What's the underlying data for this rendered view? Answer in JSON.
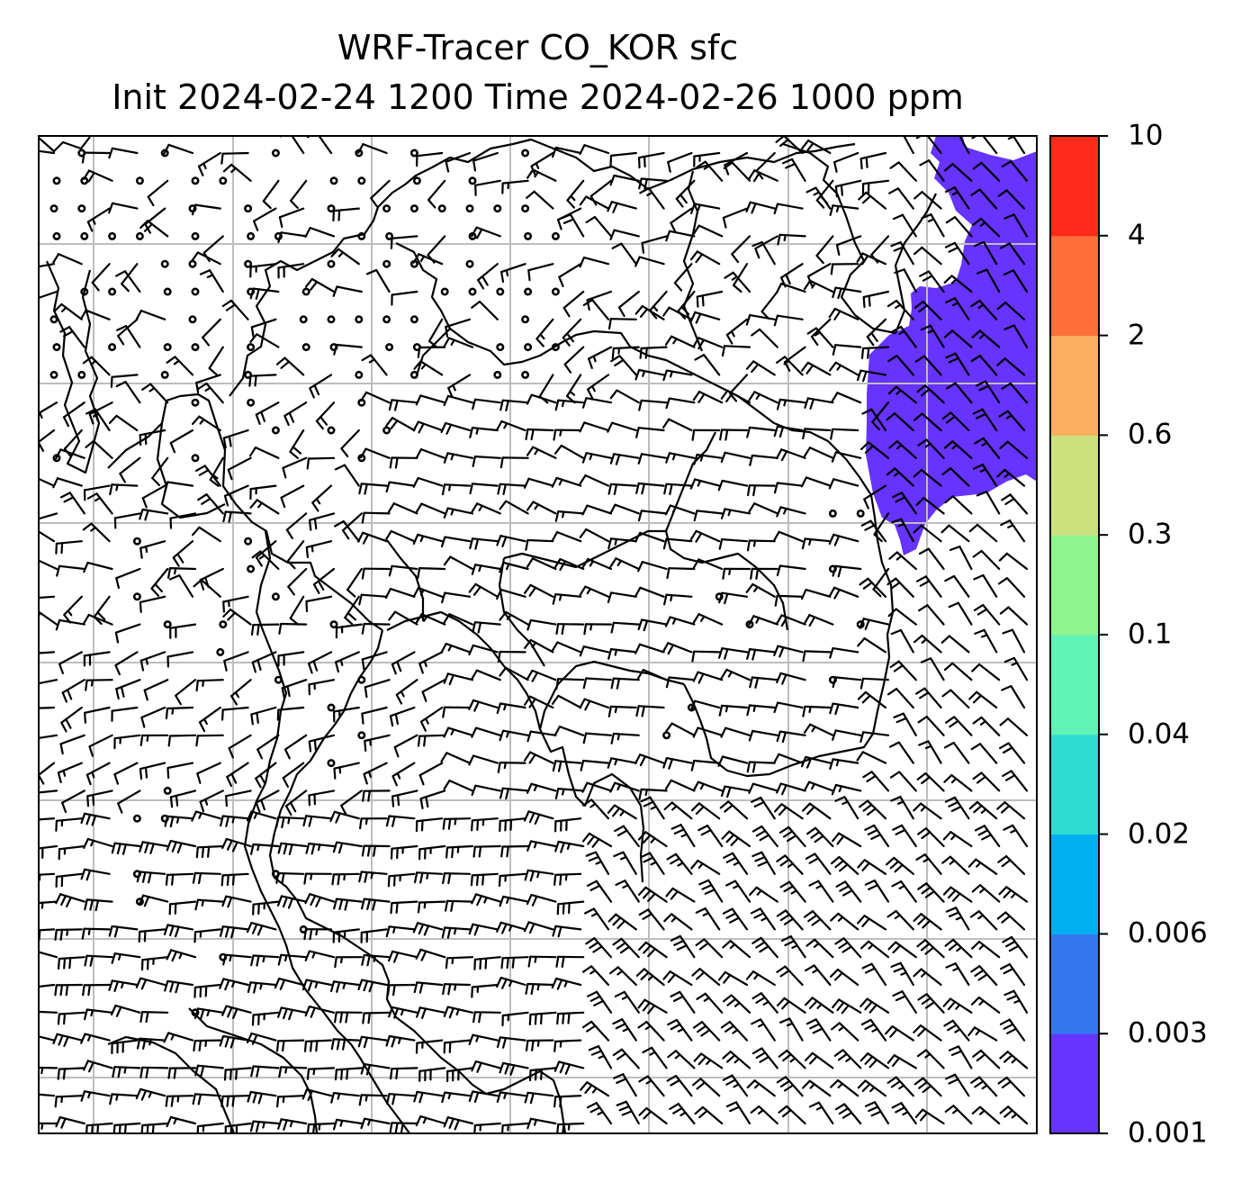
{
  "title": {
    "line1": "WRF-Tracer CO_KOR sfc",
    "line2": "Init 2024-02-24 1200 Time 2024-02-26 1000 ppm"
  },
  "colorbar": {
    "ticks": [
      "0.001",
      "0.003",
      "0.006",
      "0.02",
      "0.04",
      "0.1",
      "0.3",
      "0.6",
      "2",
      "4",
      "10"
    ],
    "colors": [
      "#6633ff",
      "#3377f0",
      "#00b0ee",
      "#2edcd4",
      "#5ff4b6",
      "#8ff58f",
      "#cde07e",
      "#fbaf5f",
      "#ff6f3c",
      "#ff2a1a"
    ]
  },
  "map": {
    "plume_level": "0.001",
    "plume_color": "#6633ff",
    "grid_color": "#bdbdbd",
    "layers": [
      "coastlines",
      "country-borders",
      "wind-barbs",
      "calm-circles",
      "tracer-contour-fill"
    ]
  }
}
